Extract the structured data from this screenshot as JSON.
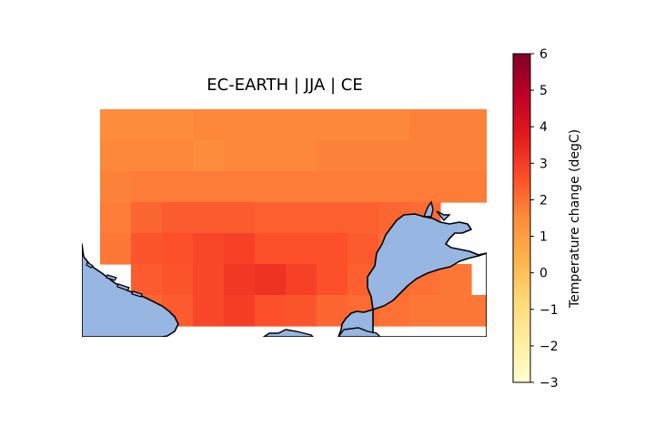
{
  "title": "EC-EARTH | JJA | CE",
  "colorbar": {
    "label": "Temperature change (degC)",
    "min": -3,
    "max": 6,
    "ticks": [
      "6",
      "5",
      "4",
      "3",
      "2",
      "1",
      "0",
      "−1",
      "−2",
      "−3"
    ],
    "colormap": "YlOrRd"
  },
  "chart_data": {
    "type": "heatmap",
    "title": "EC-EARTH | JJA | CE",
    "value_label": "Temperature change (degC)",
    "range": [
      -3,
      6
    ],
    "grid_values": [
      [
        1.5,
        1.5,
        1.5,
        1.6,
        1.6,
        1.6,
        1.6,
        1.6,
        1.6,
        1.6,
        1.7,
        1.7,
        1.7,
        1.8
      ],
      [
        1.6,
        1.6,
        1.6,
        1.5,
        1.6,
        1.6,
        1.6,
        1.7,
        1.7,
        1.7,
        1.7,
        1.7,
        1.7,
        1.8
      ],
      [
        1.7,
        1.8,
        1.8,
        1.8,
        1.8,
        1.8,
        1.8,
        1.8,
        1.8,
        1.8,
        1.8,
        1.8,
        1.8,
        1.8
      ],
      [
        1.8,
        2.2,
        2.4,
        2.4,
        2.4,
        2.3,
        2.3,
        2.3,
        2.3,
        2.2,
        2.1,
        null,
        null,
        null
      ],
      [
        1.9,
        2.5,
        2.6,
        2.8,
        2.9,
        2.6,
        2.6,
        2.6,
        2.4,
        2.1,
        2.0,
        null,
        null,
        null
      ],
      [
        null,
        2.4,
        2.5,
        2.8,
        3.1,
        3.2,
        2.9,
        2.6,
        2.3,
        2.1,
        2.0,
        1.9,
        null,
        null
      ],
      [
        null,
        2.2,
        2.4,
        2.8,
        3.0,
        2.6,
        2.5,
        2.2,
        2.1,
        2.0,
        1.9,
        1.9,
        1.9,
        null
      ]
    ],
    "colors": {
      "sea": "#97b6e1",
      "coast": "#000000"
    }
  }
}
